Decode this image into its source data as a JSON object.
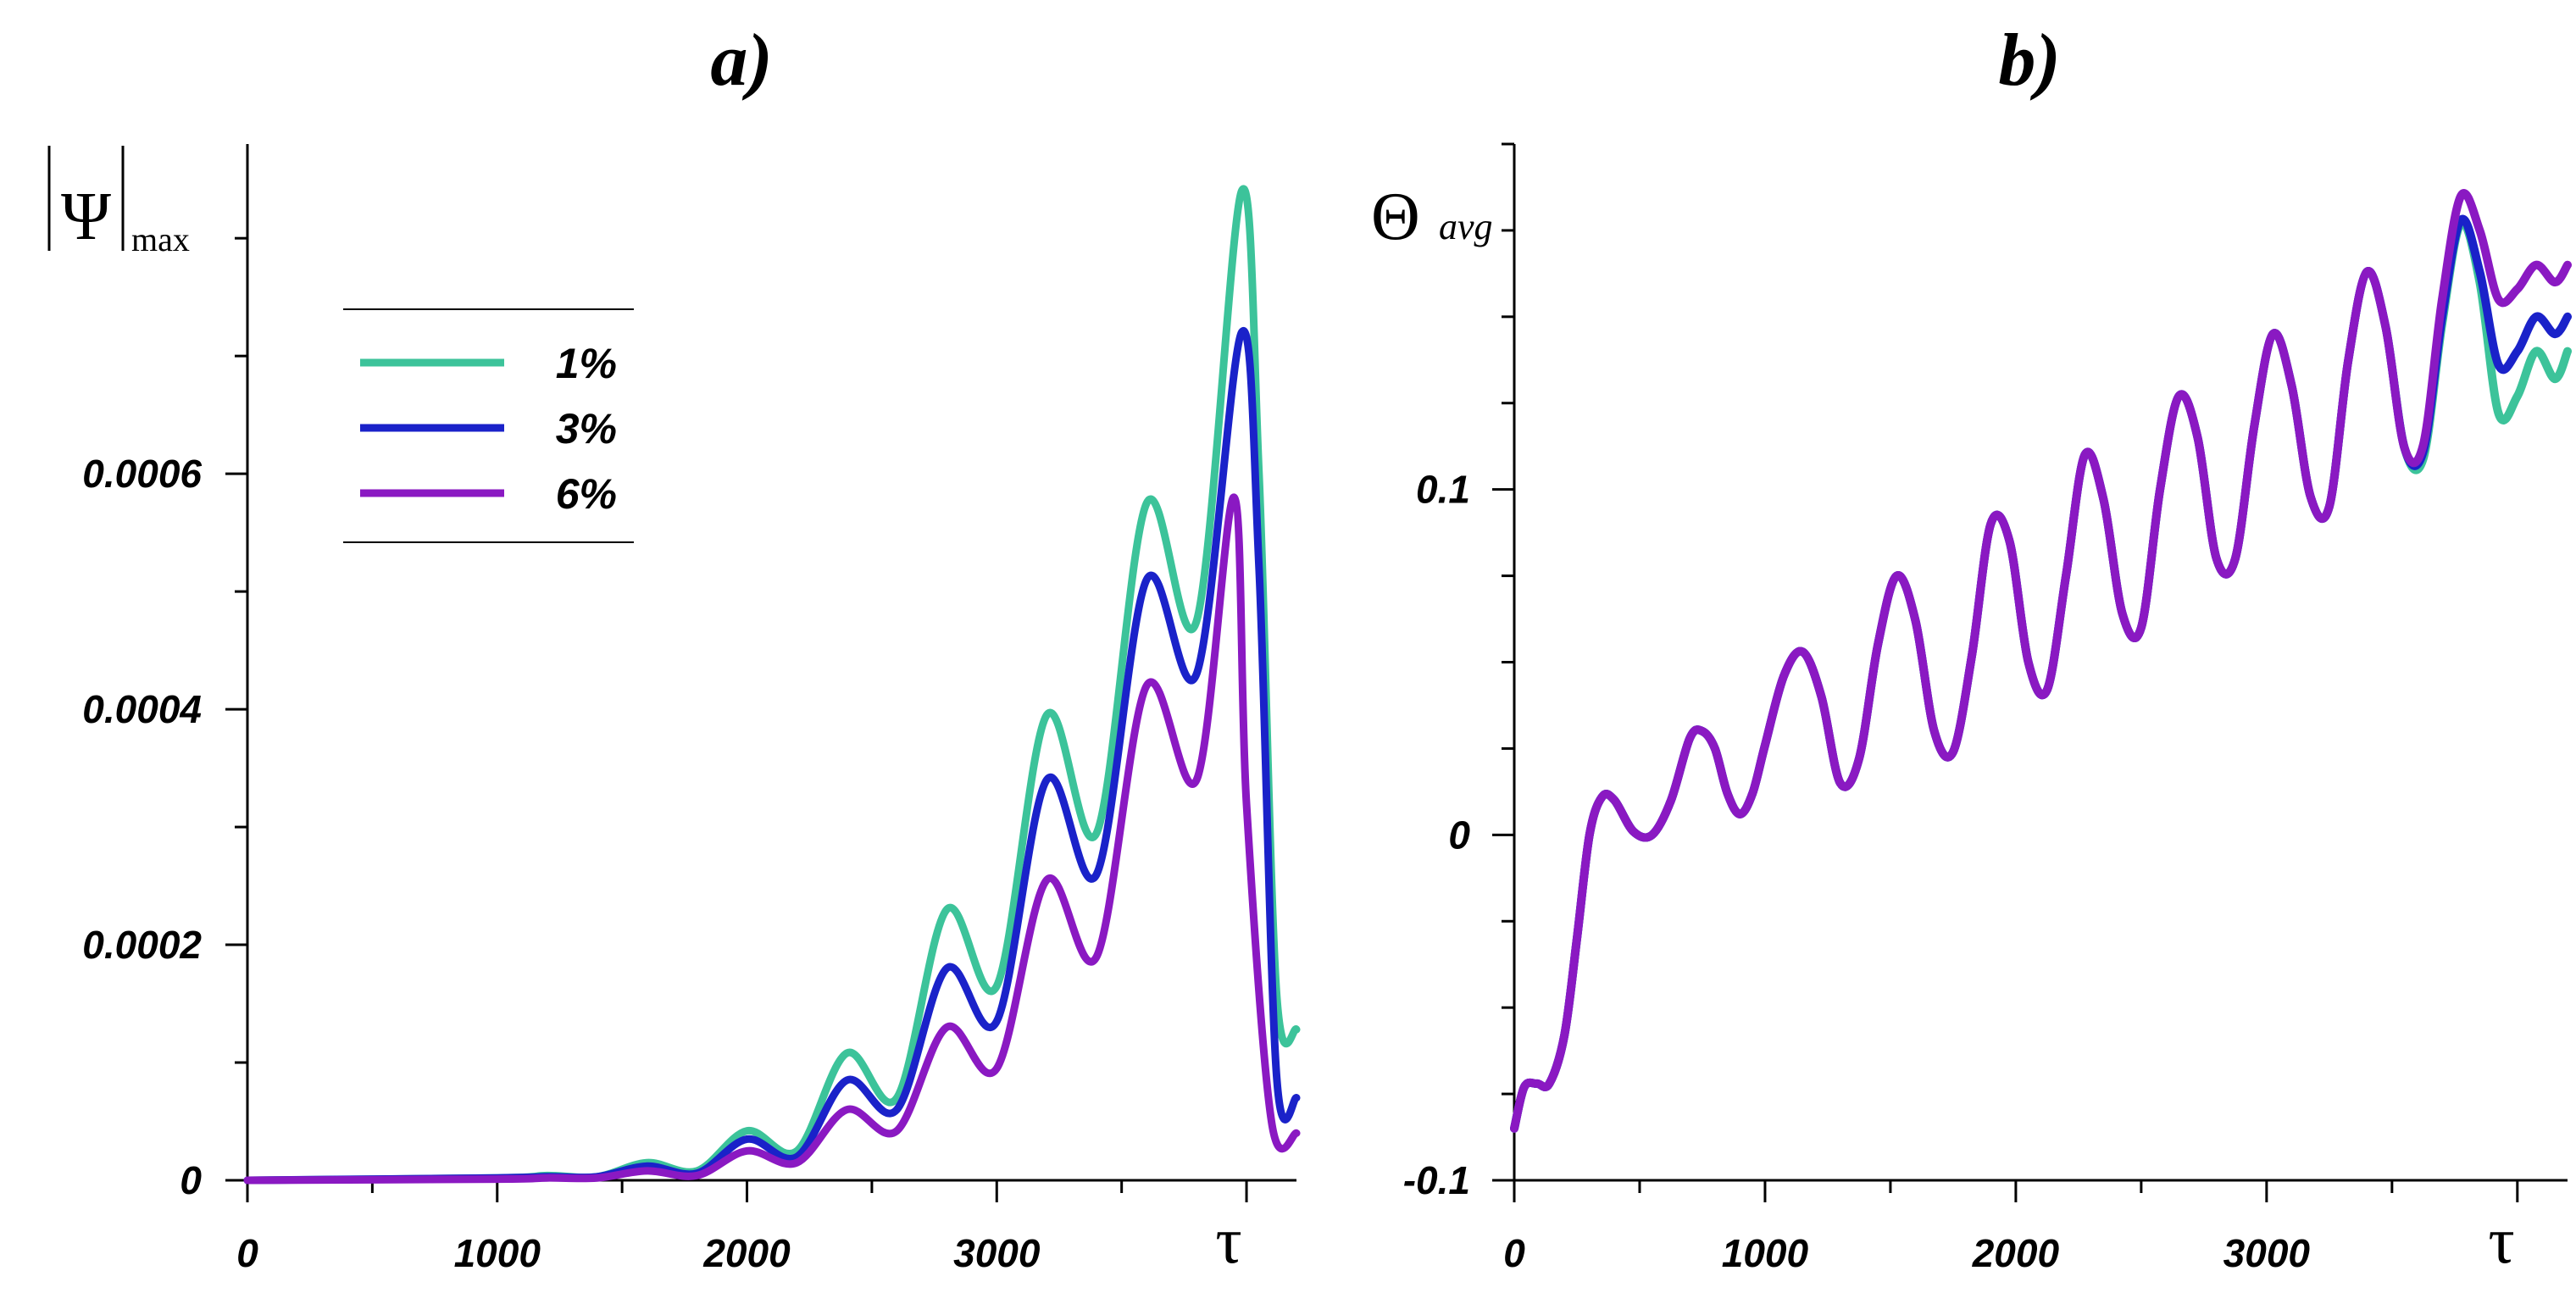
{
  "chart_data": [
    {
      "panel_label": "a)",
      "type": "line",
      "ylabel_symbol": "Ψ",
      "ylabel_subscript": "max",
      "xlabel": "τ",
      "xlim": [
        0,
        4200
      ],
      "ylim": [
        0,
        0.00088
      ],
      "x_ticks": [
        0,
        1000,
        2000,
        3000
      ],
      "x_tick_labels": [
        "0",
        "1000",
        "2000",
        "3000"
      ],
      "y_ticks": [
        0,
        0.0002,
        0.0004,
        0.0006
      ],
      "y_tick_labels": [
        "0",
        "0.0002",
        "0.0004",
        "0.0006"
      ],
      "legend": {
        "position": "upper-left",
        "entries": [
          "1%",
          "3%",
          "6%"
        ]
      },
      "series": [
        {
          "name": "1%",
          "color": "#3cc39a",
          "x": [
            0,
            1000,
            1200,
            1400,
            1600,
            1800,
            2000,
            2200,
            2400,
            2600,
            2800,
            3000,
            3200,
            3400,
            3600,
            3800,
            3980,
            4050,
            4120,
            4200
          ],
          "y": [
            0,
            2e-06,
            4e-06,
            3e-06,
            1.5e-05,
            8e-06,
            4.2e-05,
            2.5e-05,
            0.000108,
            7e-05,
            0.00023,
            0.000165,
            0.000395,
            0.000295,
            0.000575,
            0.000475,
            0.00084,
            0.0006,
            0.00016,
            0.000128
          ]
        },
        {
          "name": "3%",
          "color": "#1a22c9",
          "x": [
            0,
            1000,
            1200,
            1400,
            1600,
            1800,
            2000,
            2200,
            2400,
            2600,
            2800,
            3000,
            3200,
            3400,
            3600,
            3800,
            3980,
            4050,
            4120,
            4200
          ],
          "y": [
            0,
            2e-06,
            3e-06,
            3e-06,
            1.2e-05,
            6e-06,
            3.5e-05,
            2e-05,
            8.5e-05,
            6e-05,
            0.00018,
            0.000135,
            0.00034,
            0.00026,
            0.00051,
            0.00043,
            0.00072,
            0.00052,
            9e-05,
            7e-05
          ]
        },
        {
          "name": "6%",
          "color": "#8a19c2",
          "x": [
            0,
            1000,
            1200,
            1400,
            1600,
            1800,
            2000,
            2200,
            2400,
            2600,
            2800,
            3000,
            3200,
            3400,
            3600,
            3800,
            3950,
            4000,
            4100,
            4200
          ],
          "y": [
            0,
            1e-06,
            2e-06,
            2e-06,
            8e-06,
            4e-06,
            2.5e-05,
            1.5e-05,
            6e-05,
            4.2e-05,
            0.00013,
            9.5e-05,
            0.000255,
            0.00019,
            0.00042,
            0.00034,
            0.00058,
            0.00032,
            5e-05,
            4e-05
          ]
        }
      ]
    },
    {
      "panel_label": "b)",
      "type": "line",
      "ylabel_symbol": "Θ",
      "ylabel_subscript": "avg",
      "xlabel": "τ",
      "xlim": [
        0,
        4200
      ],
      "ylim": [
        -0.1,
        0.2
      ],
      "x_ticks": [
        0,
        1000,
        2000,
        3000
      ],
      "x_tick_labels": [
        "0",
        "1000",
        "2000",
        "3000"
      ],
      "y_ticks": [
        -0.1,
        0,
        0.1
      ],
      "y_tick_labels": [
        "-0.1",
        "0",
        "0.1"
      ],
      "series": [
        {
          "name": "1%",
          "color": "#3cc39a",
          "x": [
            0,
            40,
            90,
            140,
            200,
            250,
            300,
            350,
            400,
            475,
            550,
            625,
            700,
            750,
            800,
            850,
            900,
            950,
            1000,
            1075,
            1150,
            1225,
            1300,
            1375,
            1450,
            1525,
            1600,
            1675,
            1750,
            1825,
            1900,
            1975,
            2050,
            2125,
            2200,
            2275,
            2350,
            2425,
            2500,
            2575,
            2650,
            2725,
            2800,
            2875,
            2950,
            3025,
            3100,
            3175,
            3250,
            3325,
            3400,
            3475,
            3550,
            3625,
            3700,
            3775,
            3850,
            3925,
            4000,
            4075,
            4150,
            4200
          ],
          "y": [
            -0.085,
            -0.073,
            -0.072,
            -0.072,
            -0.058,
            -0.03,
            0.0,
            0.011,
            0.01,
            0.001,
            0.0,
            0.01,
            0.028,
            0.03,
            0.025,
            0.012,
            0.006,
            0.012,
            0.026,
            0.046,
            0.053,
            0.04,
            0.015,
            0.022,
            0.055,
            0.075,
            0.062,
            0.03,
            0.024,
            0.052,
            0.09,
            0.085,
            0.05,
            0.042,
            0.075,
            0.11,
            0.097,
            0.064,
            0.06,
            0.1,
            0.127,
            0.115,
            0.08,
            0.08,
            0.118,
            0.145,
            0.13,
            0.098,
            0.095,
            0.137,
            0.163,
            0.147,
            0.112,
            0.109,
            0.148,
            0.177,
            0.16,
            0.122,
            0.127,
            0.14,
            0.132,
            0.14
          ]
        },
        {
          "name": "3%",
          "color": "#1a22c9",
          "x": [
            0,
            40,
            90,
            140,
            200,
            250,
            300,
            350,
            400,
            475,
            550,
            625,
            700,
            750,
            800,
            850,
            900,
            950,
            1000,
            1075,
            1150,
            1225,
            1300,
            1375,
            1450,
            1525,
            1600,
            1675,
            1750,
            1825,
            1900,
            1975,
            2050,
            2125,
            2200,
            2275,
            2350,
            2425,
            2500,
            2575,
            2650,
            2725,
            2800,
            2875,
            2950,
            3025,
            3100,
            3175,
            3250,
            3325,
            3400,
            3475,
            3550,
            3625,
            3700,
            3775,
            3850,
            3925,
            4000,
            4075,
            4150,
            4200
          ],
          "y": [
            -0.085,
            -0.073,
            -0.072,
            -0.072,
            -0.058,
            -0.03,
            0.0,
            0.011,
            0.01,
            0.001,
            0.0,
            0.01,
            0.028,
            0.03,
            0.025,
            0.012,
            0.006,
            0.012,
            0.026,
            0.046,
            0.053,
            0.04,
            0.015,
            0.022,
            0.055,
            0.075,
            0.062,
            0.03,
            0.024,
            0.052,
            0.09,
            0.085,
            0.05,
            0.042,
            0.075,
            0.11,
            0.097,
            0.064,
            0.06,
            0.1,
            0.127,
            0.115,
            0.08,
            0.08,
            0.118,
            0.145,
            0.13,
            0.098,
            0.095,
            0.137,
            0.163,
            0.147,
            0.112,
            0.111,
            0.15,
            0.178,
            0.163,
            0.136,
            0.14,
            0.15,
            0.145,
            0.15
          ]
        },
        {
          "name": "6%",
          "color": "#8a19c2",
          "x": [
            0,
            40,
            90,
            140,
            200,
            250,
            300,
            350,
            400,
            475,
            550,
            625,
            700,
            750,
            800,
            850,
            900,
            950,
            1000,
            1075,
            1150,
            1225,
            1300,
            1375,
            1450,
            1525,
            1600,
            1675,
            1750,
            1825,
            1900,
            1975,
            2050,
            2125,
            2200,
            2275,
            2350,
            2425,
            2500,
            2575,
            2650,
            2725,
            2800,
            2875,
            2950,
            3025,
            3100,
            3175,
            3250,
            3325,
            3400,
            3475,
            3550,
            3625,
            3700,
            3775,
            3850,
            3925,
            4000,
            4075,
            4150,
            4200
          ],
          "y": [
            -0.085,
            -0.073,
            -0.072,
            -0.072,
            -0.058,
            -0.03,
            0.0,
            0.011,
            0.01,
            0.001,
            0.0,
            0.01,
            0.028,
            0.03,
            0.025,
            0.012,
            0.006,
            0.012,
            0.026,
            0.046,
            0.053,
            0.04,
            0.015,
            0.022,
            0.055,
            0.075,
            0.062,
            0.03,
            0.024,
            0.052,
            0.09,
            0.085,
            0.05,
            0.042,
            0.075,
            0.11,
            0.097,
            0.064,
            0.06,
            0.1,
            0.127,
            0.115,
            0.08,
            0.08,
            0.118,
            0.145,
            0.13,
            0.098,
            0.095,
            0.137,
            0.163,
            0.147,
            0.112,
            0.113,
            0.155,
            0.185,
            0.175,
            0.155,
            0.158,
            0.165,
            0.16,
            0.165
          ]
        }
      ]
    }
  ]
}
